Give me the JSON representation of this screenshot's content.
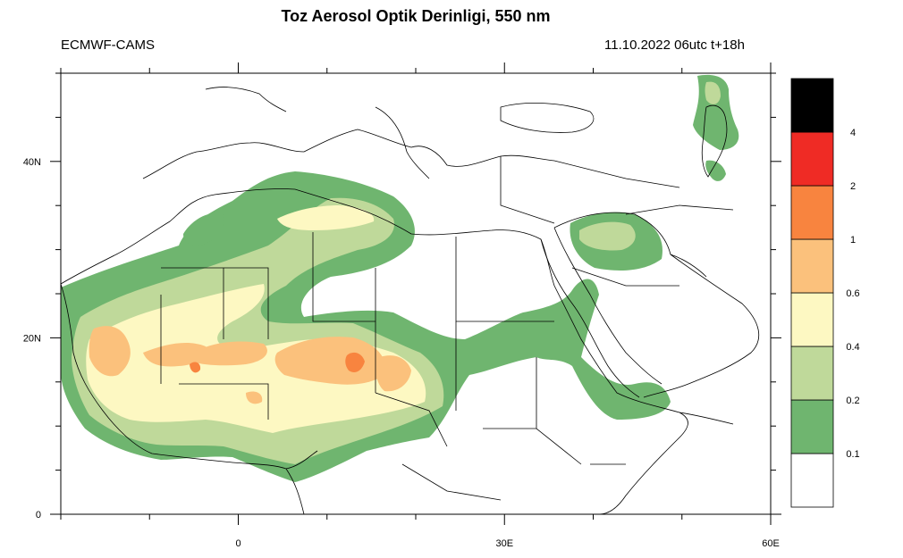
{
  "title": "Toz Aerosol Optik Derinligi, 550 nm",
  "left_label": "ECMWF-CAMS",
  "right_label": "11.10.2022 06utc t+18h",
  "axes": {
    "x_ticks": [
      {
        "value": 0,
        "label": "0"
      },
      {
        "value": 30,
        "label": "30E"
      },
      {
        "value": 60,
        "label": "60E"
      }
    ],
    "y_ticks": [
      {
        "value": 0,
        "label": "0"
      },
      {
        "value": 20,
        "label": "20N"
      },
      {
        "value": 40,
        "label": "40N"
      }
    ],
    "lon_range": [
      -20,
      60
    ],
    "lat_range": [
      0,
      50
    ]
  },
  "legend": {
    "levels": [
      {
        "label": "0.1",
        "color": "#ffffff"
      },
      {
        "label": "0.2",
        "color": "#6fb56f"
      },
      {
        "label": "0.4",
        "color": "#bfd99a"
      },
      {
        "label": "0.6",
        "color": "#fdf8c2"
      },
      {
        "label": "1",
        "color": "#fbc17c"
      },
      {
        "label": "2",
        "color": "#f8843f"
      },
      {
        "label": "4",
        "color": "#ef2b25"
      },
      {
        "label": "",
        "color": "#000000"
      }
    ]
  },
  "colors": {
    "aod_0_1_0_2": "#6fb56f",
    "aod_0_2_0_4": "#bfd99a",
    "aod_0_4_0_6": "#fdf8c2",
    "aod_0_6_1": "#fbc17c",
    "aod_1_2": "#f8843f",
    "aod_2_4": "#ef2b25",
    "aod_above_4": "#000000",
    "coastline": "#000000"
  }
}
